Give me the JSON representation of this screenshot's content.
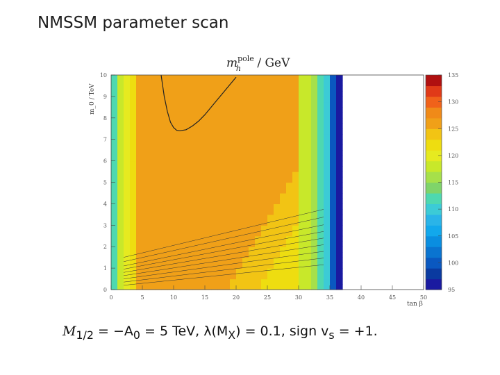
{
  "slide": {
    "title": "NMSSM parameter scan",
    "formula_parts": {
      "m12": "M",
      "m12_sub": "1/2",
      "eq1": " = −A",
      "a0_sub": "0",
      "eq2": " = 5 TeV, λ(M",
      "mx_sub": "X",
      "eq3": ") = 0.1, sign v",
      "vs_sub": "s",
      "eq4": " = +1."
    }
  },
  "chart_data": {
    "type": "heatmap",
    "title": "m_h^pole / GeV",
    "title_parts": {
      "sym": "m",
      "sup": "pole",
      "sub": "h",
      "rest": " / GeV"
    },
    "xlabel": "tan β",
    "ylabel": "m_0 / TeV",
    "xlim": [
      0,
      50
    ],
    "ylim": [
      0,
      10
    ],
    "x_ticks": [
      0,
      5,
      10,
      15,
      20,
      25,
      30,
      35,
      40,
      45,
      50
    ],
    "y_ticks": [
      0,
      1,
      2,
      3,
      4,
      5,
      6,
      7,
      8,
      9,
      10
    ],
    "colorbar": {
      "zlim": [
        95,
        135
      ],
      "ticks": [
        95,
        100,
        105,
        110,
        115,
        120,
        125,
        130,
        135
      ],
      "levels": 20
    },
    "colors": {
      "blue": "#0a3aa0",
      "cyan": "#2ab4e8",
      "green": "#7fd46a",
      "lime": "#c8e82a",
      "yellow": "#eedd10",
      "orange": "#f08a18",
      "red_orange": "#f0621a"
    },
    "band_boundaries_vs_tanb": {
      "x": [
        5,
        7,
        9,
        11,
        13,
        15,
        17,
        19,
        21,
        23,
        25,
        27,
        29,
        31,
        33,
        35,
        36
      ],
      "tanb_at_m0_1": [
        7.5,
        11
      ],
      "note_regions": [
        "cyan edge at tanβ≈1–2",
        "orange core tanβ≈3–35",
        "blue edge tanβ≈35–36",
        "no solutions tanβ>36.5"
      ]
    },
    "contour_125": {
      "x": [
        8.0,
        8.5,
        9.0,
        9.5,
        10.0,
        10.5,
        11.0,
        12.0,
        13.0,
        14.0,
        15.0,
        16.0,
        17.0,
        18.0,
        19.0,
        20.0
      ],
      "y": [
        10.0,
        9.0,
        8.3,
        7.8,
        7.55,
        7.42,
        7.4,
        7.45,
        7.62,
        7.85,
        8.15,
        8.5,
        8.85,
        9.2,
        9.55,
        9.9
      ]
    },
    "low_m0_contours": {
      "count": 9,
      "y_start": [
        0.2,
        0.35,
        0.5,
        0.65,
        0.8,
        0.95,
        1.1,
        1.3,
        1.5
      ]
    }
  }
}
